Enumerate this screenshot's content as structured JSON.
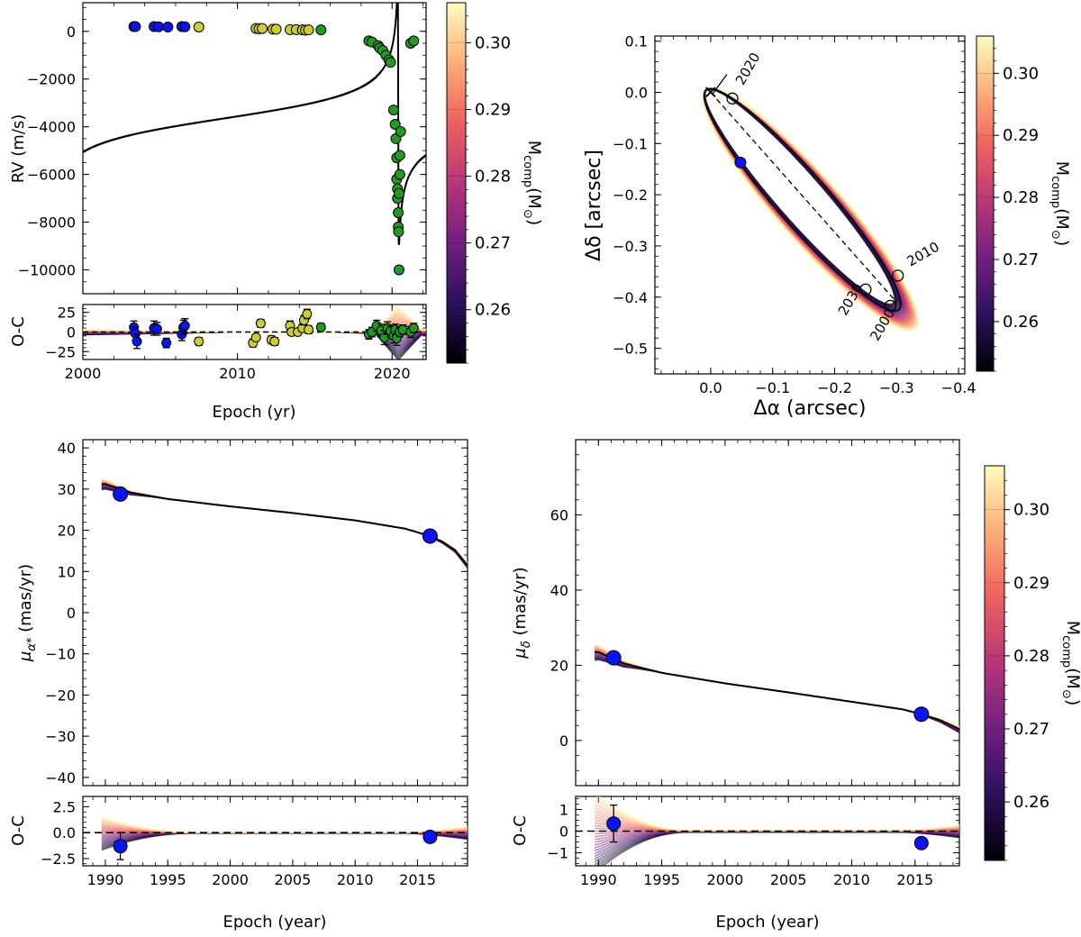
{
  "colorbar": {
    "label_main": "M",
    "label_sub": "comp",
    "label_unit_open": "(M",
    "label_unit_sub": "⊙",
    "label_unit_close": ")",
    "ticks": [
      0.26,
      0.27,
      0.28,
      0.29,
      0.3
    ],
    "range": [
      0.252,
      0.306
    ],
    "colors": [
      "#000004",
      "#2c105c",
      "#711f81",
      "#b63679",
      "#ee605e",
      "#fdae78",
      "#fcfdbf"
    ]
  },
  "chart_data": [
    {
      "id": "rv",
      "type": "scatter",
      "xlim": [
        2000,
        2022.2
      ],
      "ylim": [
        -11000,
        1200
      ],
      "xticks": [
        2000,
        2010,
        2020
      ],
      "yticks": [
        0,
        -2000,
        -4000,
        -6000,
        -8000,
        -10000
      ],
      "ylabel": "RV (m/s)",
      "curve": {
        "period": 22.5,
        "tp": 2020.4,
        "K": 5300,
        "e": 0.965,
        "omega_deg": 90,
        "gamma": -3650
      },
      "series": [
        {
          "name": "blue",
          "color": "#0a14f0",
          "x": [
            2003.3,
            2003.4,
            2004.6,
            2004.9,
            2005.5,
            2006.4,
            2006.6
          ],
          "y": [
            200,
            200,
            200,
            190,
            180,
            200,
            190
          ]
        },
        {
          "name": "yellow",
          "color": "#cccc33",
          "x": [
            2007.5,
            2011.2,
            2011.4,
            2011.6,
            2012.3,
            2012.5,
            2013.4,
            2013.8,
            2014.2,
            2014.4,
            2014.6
          ],
          "y": [
            180,
            120,
            110,
            120,
            90,
            90,
            70,
            70,
            60,
            50,
            60
          ]
        },
        {
          "name": "green",
          "color": "#229922",
          "x": [
            2015.4,
            2018.5,
            2018.7,
            2019.1,
            2019.2,
            2019.4,
            2019.6,
            2019.8,
            2019.9,
            2020.1,
            2020.2,
            2020.25,
            2020.3,
            2020.3,
            2020.35,
            2020.35,
            2020.4,
            2020.4,
            2020.42,
            2020.45,
            2020.45,
            2020.5,
            2020.5,
            2020.55,
            2021.2,
            2021.4
          ],
          "y": [
            60,
            -400,
            -450,
            -600,
            -700,
            -800,
            -1000,
            -1200,
            -1300,
            -3300,
            -3900,
            -4500,
            -5300,
            -6200,
            -6600,
            -7000,
            -7600,
            -8200,
            -8400,
            -10000,
            -6800,
            -6000,
            -5200,
            -4200,
            -500,
            -400
          ]
        }
      ]
    },
    {
      "id": "rv_oc",
      "type": "scatter",
      "xlim": [
        2000,
        2022.2
      ],
      "ylim": [
        -35,
        35
      ],
      "xticks": [
        2000,
        2010,
        2020
      ],
      "yticks": [
        25,
        0,
        -25
      ],
      "xlabel": "Epoch (yr)",
      "ylabel": "O-C",
      "series": [
        {
          "name": "blue",
          "color": "#0a14f0",
          "x": [
            2003.3,
            2003.4,
            2003.5,
            2004.6,
            2004.8,
            2005.4,
            2006.4,
            2006.5,
            2006.6
          ],
          "y": [
            6,
            -2,
            -12,
            5,
            4,
            -14,
            -3,
            6,
            8
          ],
          "err": [
            8,
            8,
            9,
            9,
            8,
            6,
            8,
            9,
            9
          ]
        },
        {
          "name": "yellow",
          "color": "#cccc33",
          "x": [
            2007.5,
            2011.0,
            2011.2,
            2011.5,
            2012.2,
            2012.4,
            2013.4,
            2013.5,
            2013.9,
            2014.2,
            2014.3,
            2014.5,
            2014.6
          ],
          "y": [
            -12,
            -14,
            -7,
            11,
            -10,
            -12,
            8,
            0,
            0,
            5,
            15,
            23,
            3
          ],
          "err": [
            5,
            5,
            4,
            5,
            5,
            5,
            6,
            4,
            4,
            5,
            6,
            6,
            5
          ]
        },
        {
          "name": "green",
          "color": "#229922",
          "x": [
            2015.4,
            2018.5,
            2018.7,
            2019.0,
            2019.3,
            2019.5,
            2019.7,
            2019.9,
            2020.1,
            2020.2,
            2020.3,
            2020.5,
            2020.7,
            2021.2,
            2021.4
          ],
          "y": [
            6,
            -3,
            0,
            8,
            2,
            -7,
            5,
            1,
            -5,
            3,
            -8,
            0,
            3,
            0,
            5
          ],
          "err": [
            5,
            6,
            6,
            7,
            8,
            9,
            8,
            7,
            9,
            7,
            9,
            6,
            6,
            7,
            6
          ]
        }
      ]
    },
    {
      "id": "astrometry",
      "type": "scatter",
      "xlim": [
        0.09,
        -0.41
      ],
      "ylim": [
        -0.55,
        0.11
      ],
      "xticks": [
        0.0,
        -0.1,
        -0.2,
        -0.3,
        -0.4
      ],
      "xtick_labels": [
        "0.0",
        "−0.1",
        "−0.2",
        "−0.3",
        "−0.4"
      ],
      "yticks": [
        0.1,
        0.0,
        -0.1,
        -0.2,
        -0.3,
        -0.4,
        -0.5
      ],
      "ytick_labels": [
        "0.1",
        "0.0",
        "−0.1",
        "−0.2",
        "−0.3",
        "−0.4",
        "−0.5"
      ],
      "xlabel": "Δα (arcsec)",
      "ylabel": "Δδ [arcsec]",
      "primary_star": {
        "x": 0.0,
        "y": 0.0
      },
      "measurement": {
        "x": -0.048,
        "y": -0.137
      },
      "orbit": {
        "center": [
          -0.148,
          -0.21
        ],
        "a": 0.265,
        "b": 0.045,
        "angle_deg": 54.4
      },
      "node_line": {
        "from": [
          0.0,
          0.0
        ],
        "to": [
          -0.3,
          -0.41
        ]
      },
      "epoch_markers": [
        {
          "label": "2020",
          "x": -0.035,
          "y": -0.012
        },
        {
          "label": "2010",
          "x": -0.302,
          "y": -0.358
        },
        {
          "label": "2030",
          "x": -0.25,
          "y": -0.385
        },
        {
          "label": "2000",
          "x": -0.29,
          "y": -0.417
        }
      ]
    },
    {
      "id": "pm_ra",
      "type": "line",
      "xlim": [
        1988.2,
        2019
      ],
      "ylim": [
        -42,
        42
      ],
      "xticks": [
        1990,
        1995,
        2000,
        2005,
        2010,
        2015
      ],
      "yticks": [
        40,
        30,
        20,
        10,
        0,
        -10,
        -20,
        -30,
        -40
      ],
      "ylabel": "μα* (mas/yr)",
      "curve_x": [
        1990,
        1992,
        1995,
        2000,
        2005,
        2010,
        2014,
        2016,
        2017,
        2018,
        2019
      ],
      "curve_y": [
        31.2,
        29.2,
        27.6,
        25.8,
        24.2,
        22.4,
        20.4,
        18.6,
        17.2,
        15.2,
        11.5
      ],
      "points": {
        "x": [
          1991.2,
          2016
        ],
        "y": [
          28.8,
          18.6
        ],
        "err": [
          1.2,
          0.4
        ]
      }
    },
    {
      "id": "pm_ra_oc",
      "type": "scatter",
      "xlim": [
        1988.2,
        2019
      ],
      "ylim": [
        -3.2,
        3.5
      ],
      "xticks": [
        1990,
        1995,
        2000,
        2005,
        2010,
        2015
      ],
      "yticks": [
        2.5,
        0.0,
        -2.5
      ],
      "ytick_labels": [
        "2.5",
        "0.0",
        "−2.5"
      ],
      "xlabel": "Epoch (year)",
      "ylabel": "O-C",
      "points": {
        "x": [
          1991.2,
          2016
        ],
        "y": [
          -1.3,
          -0.4
        ],
        "err": [
          1.3,
          0.15
        ]
      }
    },
    {
      "id": "pm_dec",
      "type": "line",
      "xlim": [
        1988.2,
        2018.5
      ],
      "ylim": [
        -12,
        80
      ],
      "xticks": [
        1990,
        1995,
        2000,
        2005,
        2010,
        2015
      ],
      "yticks": [
        60,
        40,
        20,
        0
      ],
      "ylabel": "μδ (mas/yr)",
      "curve_x": [
        1990,
        1992,
        1995,
        2000,
        2005,
        2010,
        2014,
        2015.5,
        2017,
        2018.5
      ],
      "curve_y": [
        23.5,
        20.5,
        18.0,
        15.2,
        12.8,
        10.3,
        8.3,
        7.0,
        5.4,
        3.0
      ],
      "points": {
        "x": [
          1991.2,
          2015.5
        ],
        "y": [
          22.0,
          7.0
        ],
        "err": [
          1.0,
          0.3
        ]
      }
    },
    {
      "id": "pm_dec_oc",
      "type": "scatter",
      "xlim": [
        1988.2,
        2018.5
      ],
      "ylim": [
        -1.6,
        1.6
      ],
      "xticks": [
        1990,
        1995,
        2000,
        2005,
        2010,
        2015
      ],
      "yticks": [
        1,
        0,
        -1
      ],
      "ytick_labels": [
        "1",
        "0",
        "−1"
      ],
      "xlabel": "Epoch (year)",
      "ylabel": "O-C",
      "points": {
        "x": [
          1991.2,
          2015.5
        ],
        "y": [
          0.35,
          -0.55
        ],
        "err": [
          0.85,
          0.1
        ]
      }
    }
  ]
}
